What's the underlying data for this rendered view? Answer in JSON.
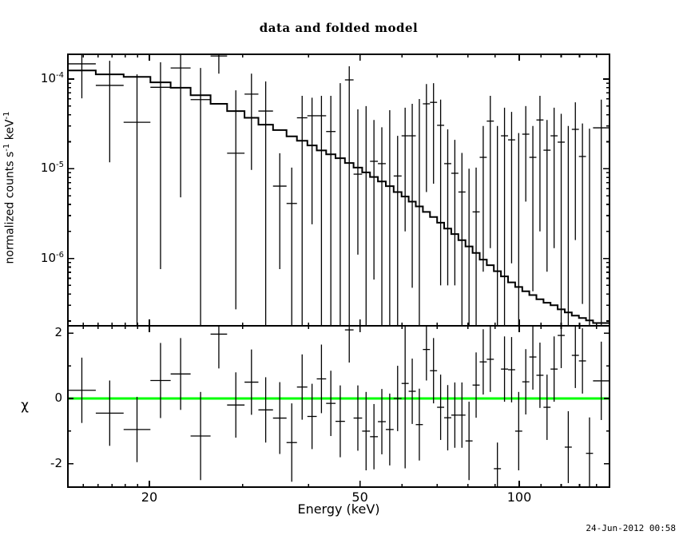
{
  "title": "data and folded model",
  "timestamp": "24-Jun-2012 00:58",
  "chart_data": {
    "type": "line",
    "subtype": "xspec-spectrum-with-residuals",
    "title": "data and folded model",
    "xlabel": "Energy (keV)",
    "x_log": true,
    "x_range": [
      14.03,
      148.1
    ],
    "x_major_ticks": [
      {
        "value": 20,
        "label": "20"
      },
      {
        "value": 50,
        "label": "50"
      },
      {
        "value": 100,
        "label": "100"
      }
    ],
    "x_minor_ticks": [
      15,
      16,
      17,
      18,
      19,
      30,
      40,
      60,
      70,
      80,
      90,
      110,
      120,
      130,
      140
    ],
    "grid": false,
    "colors": {
      "data": "#000000",
      "model": "#000000",
      "zero_line": "#00ff00",
      "frame": "#000000"
    },
    "bin_edges_keV": [
      14.03,
      15.84,
      17.88,
      20.09,
      21.94,
      23.93,
      26.1,
      28.05,
      30.26,
      32.14,
      34.25,
      36.33,
      38.01,
      39.77,
      41.43,
      43.16,
      44.96,
      46.84,
      48.63,
      50.48,
      52.24,
      54.06,
      55.95,
      57.9,
      59.93,
      61.81,
      63.75,
      65.75,
      67.81,
      69.94,
      72.13,
      74.4,
      76.73,
      79.14,
      81.62,
      84.18,
      86.82,
      89.54,
      92.35,
      95.25,
      98.23,
      101.31,
      104.48,
      107.75,
      111.12,
      114.6,
      118.19,
      121.89,
      125.7,
      129.64,
      133.7,
      137.86,
      148.1
    ],
    "panels": [
      {
        "name": "spectrum",
        "ylabel": "normalized counts s-1 keV-1",
        "ylabel_parts": [
          [
            "normalized counts s",
            false
          ],
          [
            "-1",
            true
          ],
          [
            " keV",
            false
          ],
          [
            "-1",
            true
          ]
        ],
        "y_log": true,
        "y_range": [
          1.77e-07,
          0.000189
        ],
        "y_major_ticks": [
          {
            "base": "10",
            "exp": "-4",
            "value": 0.0001
          },
          {
            "base": "10",
            "exp": "-5",
            "value": 1e-05
          },
          {
            "base": "10",
            "exp": "-6",
            "value": 1e-06
          }
        ],
        "model_values": [
          0.000125,
          0.000113,
          0.000106,
          9.2e-05,
          8e-05,
          6.6e-05,
          5.3e-05,
          4.4e-05,
          3.7e-05,
          3.1e-05,
          2.7e-05,
          2.3e-05,
          2.05e-05,
          1.82e-05,
          1.6e-05,
          1.45e-05,
          1.31e-05,
          1.16e-05,
          1.03e-05,
          9.1e-06,
          8.1e-06,
          7.2e-06,
          6.4e-06,
          5.5e-06,
          4.9e-06,
          4.3e-06,
          3.8e-06,
          3.3e-06,
          2.9e-06,
          2.5e-06,
          2.15e-06,
          1.87e-06,
          1.6e-06,
          1.36e-06,
          1.15e-06,
          9.7e-07,
          8.4e-07,
          7.2e-07,
          6.3e-07,
          5.4e-07,
          4.8e-07,
          4.3e-07,
          3.9e-07,
          3.5e-07,
          3.2e-07,
          3e-07,
          2.7e-07,
          2.5e-07,
          2.3e-07,
          2.16e-07,
          2.03e-07,
          1.9e-07
        ],
        "data_values": [
          0.000148,
          8.5e-05,
          3.3e-05,
          8.1e-05,
          0.000133,
          5.9e-05,
          0.000181,
          1.49e-05,
          6.8e-05,
          4.4e-05,
          6.4e-06,
          4.1e-06,
          3.7e-05,
          3.9e-05,
          3.9e-05,
          2.6e-05,
          null,
          9.8e-05,
          8.7e-06,
          null,
          1.21e-05,
          1.14e-05,
          null,
          8.3e-06,
          2.33e-05,
          2.33e-05,
          null,
          5.3e-05,
          5.5e-05,
          3.05e-05,
          1.14e-05,
          8.9e-06,
          5.5e-06,
          null,
          3.3e-06,
          1.34e-05,
          3.4e-05,
          null,
          2.33e-05,
          2.1e-05,
          null,
          2.43e-05,
          1.34e-05,
          3.5e-05,
          1.61e-05,
          2.33e-05,
          1.98e-05,
          null,
          2.75e-05,
          1.37e-05,
          null,
          2.86e-05
        ],
        "err_hi": [
          0.00022,
          0.00016,
          0.000113,
          0.000154,
          0.000189,
          0.000133,
          0.00021,
          7.5e-05,
          0.000115,
          9.4e-05,
          1.49e-05,
          1.03e-05,
          6.5e-05,
          6.2e-05,
          6.5e-05,
          6.5e-05,
          9e-05,
          0.000139,
          4.6e-05,
          5e-05,
          3.5e-05,
          2.9e-05,
          4.5e-05,
          2.33e-05,
          4.8e-05,
          5.3e-05,
          6e-05,
          8.8e-05,
          9e-05,
          5.9e-05,
          2.75e-05,
          2.1e-05,
          1.5e-05,
          1e-05,
          1.03e-05,
          3e-05,
          6.5e-05,
          3e-05,
          4.8e-05,
          4.3e-05,
          2.5e-05,
          5e-05,
          3e-05,
          6.5e-05,
          3.5e-05,
          4.8e-05,
          4.1e-05,
          3e-05,
          5.5e-05,
          3.2e-05,
          2.8e-05,
          5.9e-05
        ],
        "err_lo": [
          6.1e-05,
          1.18e-05,
          1e-07,
          7.6e-07,
          4.8e-06,
          1e-07,
          0.000115,
          2.7e-07,
          9.7e-06,
          1e-07,
          7.6e-07,
          1e-07,
          1e-07,
          2.4e-06,
          1e-07,
          1e-07,
          1e-07,
          1e-07,
          1.1e-06,
          1e-07,
          5.8e-07,
          1e-07,
          1e-07,
          1e-07,
          2e-06,
          4.7e-07,
          1e-07,
          5.5e-06,
          6.8e-06,
          5e-07,
          5e-07,
          5e-07,
          1e-07,
          1e-07,
          1e-07,
          7.1e-07,
          1.3e-06,
          1e-07,
          1e-07,
          8.8e-07,
          1e-07,
          4.3e-06,
          4.3e-07,
          2e-06,
          7.1e-07,
          1.3e-06,
          1e-07,
          1e-07,
          1.6e-06,
          3.1e-07,
          1e-07,
          1e-07
        ]
      },
      {
        "name": "residuals",
        "ylabel": "χ",
        "y_log": false,
        "y_range": [
          -2.714,
          2.225
        ],
        "y_major_ticks": [
          {
            "label": "2",
            "value": 2
          },
          {
            "label": "0",
            "value": 0
          },
          {
            "label": "-2",
            "value": -2
          }
        ],
        "y_minor_ticks": [
          1,
          -1
        ],
        "zero_line_value": 0,
        "zero_line_color": "#00ff00",
        "chi": [
          0.25,
          -0.45,
          -0.95,
          0.55,
          0.75,
          -1.15,
          1.97,
          -0.2,
          0.5,
          -0.35,
          -0.6,
          -1.35,
          0.35,
          -0.55,
          0.6,
          -0.15,
          -0.7,
          2.1,
          -0.6,
          -1.0,
          -1.17,
          -0.71,
          -0.95,
          0.0,
          0.46,
          0.22,
          -0.8,
          1.5,
          0.85,
          -0.27,
          -0.59,
          -0.51,
          -0.51,
          -1.3,
          0.41,
          1.12,
          1.2,
          -2.15,
          0.9,
          0.88,
          -1.0,
          0.51,
          1.27,
          0.71,
          -0.27,
          0.9,
          1.93,
          -1.49,
          1.32,
          1.15,
          -1.68,
          0.54
        ],
        "sigma": [
          1.0,
          1.0,
          1.0,
          1.15,
          1.1,
          1.35,
          1.05,
          1.0,
          1.0,
          1.0,
          1.1,
          1.2,
          1.0,
          1.0,
          1.05,
          1.0,
          1.1,
          1.0,
          1.0,
          1.2,
          1.0,
          1.0,
          1.1,
          1.0,
          2.6,
          1.0,
          1.1,
          0.95,
          1.0,
          1.0,
          1.0,
          1.0,
          1.0,
          1.2,
          1.0,
          1.0,
          1.0,
          0.8,
          1.0,
          1.0,
          1.2,
          1.0,
          1.0,
          1.0,
          1.0,
          1.0,
          1.0,
          1.1,
          1.0,
          1.0,
          1.1,
          1.2
        ]
      }
    ]
  }
}
